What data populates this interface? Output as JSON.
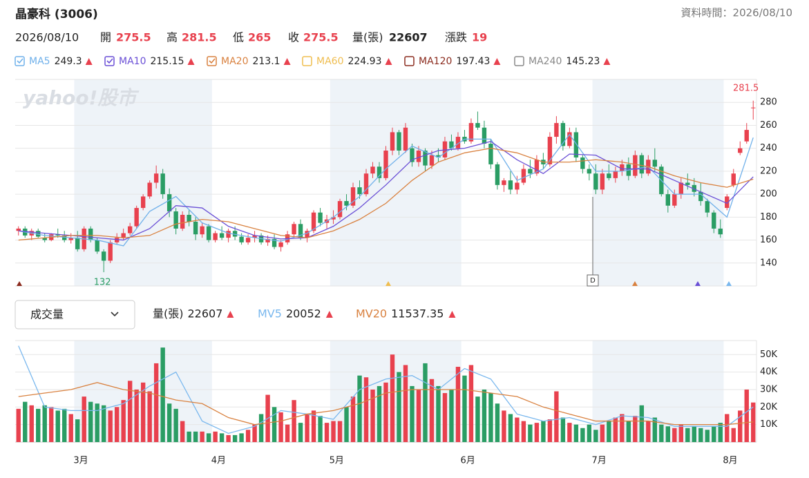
{
  "header": {
    "title": "晶豪科 (3006)",
    "data_time": "資料時間：2026/08/10",
    "date": "2026/08/10",
    "quote_labels": [
      "開",
      "高",
      "低",
      "收",
      "量(張)",
      "漲跌"
    ],
    "change": 19
  },
  "chart_data": {
    "type": "candlestick",
    "watermark": "yahoo!股市",
    "dividend_marker": "D",
    "up_color": "#e8414e",
    "down_color": "#2a9d64",
    "ylim": [
      120,
      300
    ],
    "yticks": [
      140,
      160,
      180,
      200,
      220,
      240,
      260,
      280
    ],
    "xticks": [
      {
        "value": 9,
        "label": "3月"
      },
      {
        "value": 30,
        "label": "4月"
      },
      {
        "value": 48,
        "label": "5月"
      },
      {
        "value": 68,
        "label": "6月"
      },
      {
        "value": 88,
        "label": "7月"
      },
      {
        "value": 108,
        "label": "8月"
      }
    ],
    "ohlc": [
      [
        168,
        172,
        164,
        170
      ],
      [
        170,
        172,
        162,
        164
      ],
      [
        164,
        170,
        160,
        168
      ],
      [
        168,
        170,
        162,
        163
      ],
      [
        162,
        166,
        158,
        160
      ],
      [
        160,
        166,
        159,
        165
      ],
      [
        165,
        170,
        162,
        164
      ],
      [
        164,
        168,
        158,
        160
      ],
      [
        160,
        166,
        157,
        162
      ],
      [
        162,
        168,
        150,
        152
      ],
      [
        152,
        172,
        150,
        170
      ],
      [
        170,
        172,
        158,
        160
      ],
      [
        160,
        162,
        148,
        150
      ],
      [
        150,
        152,
        132,
        142
      ],
      [
        142,
        160,
        140,
        158
      ],
      [
        158,
        166,
        156,
        162
      ],
      [
        162,
        170,
        160,
        166
      ],
      [
        166,
        175,
        164,
        172
      ],
      [
        172,
        190,
        170,
        188
      ],
      [
        188,
        200,
        186,
        198
      ],
      [
        198,
        212,
        196,
        210
      ],
      [
        210,
        225,
        205,
        218
      ],
      [
        218,
        222,
        196,
        200
      ],
      [
        200,
        205,
        180,
        185
      ],
      [
        185,
        188,
        165,
        170
      ],
      [
        170,
        185,
        168,
        182
      ],
      [
        182,
        186,
        172,
        176
      ],
      [
        176,
        180,
        160,
        165
      ],
      [
        165,
        175,
        162,
        172
      ],
      [
        172,
        174,
        158,
        160
      ],
      [
        160,
        168,
        158,
        166
      ],
      [
        166,
        172,
        160,
        162
      ],
      [
        162,
        170,
        158,
        168
      ],
      [
        168,
        172,
        160,
        163
      ],
      [
        163,
        166,
        156,
        158
      ],
      [
        158,
        165,
        156,
        162
      ],
      [
        162,
        168,
        158,
        164
      ],
      [
        164,
        166,
        156,
        158
      ],
      [
        158,
        164,
        155,
        161
      ],
      [
        161,
        165,
        152,
        154
      ],
      [
        154,
        160,
        150,
        158
      ],
      [
        158,
        168,
        156,
        165
      ],
      [
        165,
        176,
        162,
        174
      ],
      [
        174,
        178,
        160,
        162
      ],
      [
        162,
        170,
        158,
        168
      ],
      [
        168,
        186,
        166,
        184
      ],
      [
        184,
        188,
        172,
        175
      ],
      [
        175,
        182,
        170,
        178
      ],
      [
        178,
        186,
        174,
        180
      ],
      [
        180,
        196,
        178,
        194
      ],
      [
        194,
        200,
        186,
        190
      ],
      [
        190,
        210,
        188,
        206
      ],
      [
        206,
        212,
        196,
        200
      ],
      [
        200,
        222,
        198,
        218
      ],
      [
        218,
        228,
        214,
        224
      ],
      [
        224,
        228,
        210,
        214
      ],
      [
        214,
        242,
        212,
        238
      ],
      [
        238,
        258,
        234,
        254
      ],
      [
        254,
        256,
        234,
        238
      ],
      [
        238,
        262,
        236,
        258
      ],
      [
        240,
        244,
        224,
        228
      ],
      [
        228,
        242,
        224,
        238
      ],
      [
        238,
        240,
        220,
        225
      ],
      [
        225,
        238,
        222,
        234
      ],
      [
        234,
        240,
        228,
        232
      ],
      [
        232,
        250,
        230,
        246
      ],
      [
        246,
        252,
        238,
        240
      ],
      [
        240,
        254,
        238,
        250
      ],
      [
        250,
        256,
        244,
        246
      ],
      [
        246,
        266,
        244,
        262
      ],
      [
        262,
        272,
        256,
        258
      ],
      [
        258,
        264,
        240,
        244
      ],
      [
        244,
        248,
        222,
        226
      ],
      [
        226,
        228,
        204,
        208
      ],
      [
        208,
        214,
        202,
        212
      ],
      [
        212,
        220,
        200,
        204
      ],
      [
        204,
        216,
        200,
        210
      ],
      [
        210,
        226,
        208,
        222
      ],
      [
        222,
        230,
        214,
        218
      ],
      [
        218,
        234,
        216,
        230
      ],
      [
        230,
        236,
        222,
        226
      ],
      [
        226,
        254,
        224,
        250
      ],
      [
        250,
        268,
        244,
        262
      ],
      [
        262,
        264,
        238,
        242
      ],
      [
        242,
        258,
        240,
        254
      ],
      [
        254,
        258,
        228,
        232
      ],
      [
        232,
        234,
        218,
        222
      ],
      [
        222,
        226,
        212,
        218
      ],
      [
        218,
        226,
        200,
        204
      ],
      [
        204,
        222,
        200,
        218
      ],
      [
        218,
        226,
        212,
        214
      ],
      [
        214,
        224,
        210,
        220
      ],
      [
        220,
        230,
        216,
        226
      ],
      [
        226,
        232,
        212,
        216
      ],
      [
        216,
        238,
        214,
        234
      ],
      [
        234,
        236,
        214,
        218
      ],
      [
        218,
        234,
        216,
        230
      ],
      [
        230,
        240,
        220,
        224
      ],
      [
        224,
        226,
        198,
        200
      ],
      [
        200,
        204,
        184,
        190
      ],
      [
        190,
        204,
        188,
        200
      ],
      [
        200,
        214,
        196,
        210
      ],
      [
        210,
        218,
        204,
        208
      ],
      [
        208,
        214,
        198,
        202
      ],
      [
        202,
        210,
        190,
        194
      ],
      [
        194,
        196,
        180,
        184
      ],
      [
        184,
        186,
        166,
        170
      ],
      [
        170,
        178,
        162,
        165
      ],
      [
        188,
        200,
        186,
        198
      ],
      [
        208,
        222,
        206,
        218
      ],
      [
        236,
        246,
        234,
        240
      ],
      [
        246,
        262,
        244,
        256
      ],
      [
        275.5,
        281.5,
        265,
        275.5
      ]
    ],
    "line_x": [
      0,
      4,
      8,
      12,
      16,
      20,
      24,
      28,
      32,
      36,
      40,
      44,
      48,
      52,
      56,
      60,
      64,
      68,
      72,
      76,
      80,
      84,
      88,
      92,
      96,
      100,
      104,
      108,
      112
    ],
    "ma": [
      {
        "name": "MA5",
        "color": "#6fb0ea",
        "value": 249.3,
        "checked": true,
        "values": [
          168,
          164,
          162,
          160,
          155,
          185,
          198,
          175,
          166,
          162,
          159,
          166,
          180,
          198,
          222,
          242,
          232,
          248,
          248,
          212,
          222,
          252,
          220,
          220,
          224,
          200,
          200,
          180,
          249.3
        ]
      },
      {
        "name": "MA10",
        "color": "#6a4fd6",
        "value": 215.15,
        "checked": true,
        "values": [
          168,
          166,
          164,
          162,
          160,
          170,
          190,
          188,
          172,
          164,
          161,
          162,
          172,
          188,
          208,
          230,
          238,
          240,
          246,
          230,
          218,
          235,
          234,
          222,
          222,
          212,
          202,
          192,
          215.15
        ]
      },
      {
        "name": "MA20",
        "color": "#d9813f",
        "value": 213.1,
        "checked": true,
        "values": [
          160,
          162,
          164,
          164,
          162,
          164,
          174,
          178,
          176,
          170,
          164,
          162,
          168,
          178,
          192,
          212,
          228,
          236,
          240,
          236,
          228,
          228,
          230,
          228,
          224,
          216,
          210,
          206,
          213.1
        ]
      },
      {
        "name": "MA60",
        "color": "#efbd4f",
        "value": 224.93,
        "checked": false
      },
      {
        "name": "MA120",
        "color": "#8b2b1e",
        "value": 197.43,
        "checked": false
      },
      {
        "name": "MA240",
        "color": "#888888",
        "value": 145.23,
        "checked": false
      }
    ],
    "volume_selector": "成交量",
    "vlim": [
      0,
      58000
    ],
    "vticks": [
      {
        "value": 10000,
        "label": "10K"
      },
      {
        "value": 20000,
        "label": "20K"
      },
      {
        "value": 30000,
        "label": "30K"
      },
      {
        "value": 40000,
        "label": "40K"
      },
      {
        "value": 50000,
        "label": "50K"
      }
    ],
    "volume": [
      19000,
      23000,
      21000,
      19000,
      21000,
      20000,
      18000,
      19000,
      16000,
      13000,
      26000,
      23000,
      22000,
      21000,
      18000,
      20000,
      24000,
      35000,
      30000,
      34000,
      29000,
      45000,
      54000,
      22000,
      19000,
      12000,
      6000,
      6000,
      6000,
      5000,
      6000,
      5000,
      4000,
      4000,
      5000,
      7000,
      10000,
      16000,
      27000,
      20000,
      17000,
      10000,
      24000,
      11000,
      16000,
      18000,
      15000,
      11000,
      12000,
      12000,
      20000,
      26000,
      38000,
      37000,
      30000,
      32000,
      34000,
      50000,
      40000,
      44000,
      32000,
      30000,
      45000,
      36000,
      32000,
      28000,
      30000,
      43000,
      38000,
      44000,
      26000,
      30000,
      28000,
      22000,
      18000,
      16000,
      14000,
      12000,
      10000,
      11000,
      12000,
      13000,
      29000,
      14000,
      11000,
      10000,
      8000,
      10000,
      7000,
      10000,
      12000,
      14000,
      16000,
      12000,
      15000,
      21000,
      12000,
      14000,
      10000,
      9000,
      8000,
      10000,
      8000,
      9000,
      8000,
      7000,
      9000,
      11000,
      16000,
      8000,
      18000,
      30000,
      22607
    ],
    "mv": [
      {
        "name": "MV5",
        "color": "#7ab8ee",
        "value": 20052,
        "values": [
          55000,
          20000,
          18000,
          18000,
          22000,
          32000,
          40000,
          12000,
          5000,
          9000,
          18000,
          16000,
          13000,
          30000,
          36000,
          38000,
          30000,
          42000,
          36000,
          16000,
          12000,
          14000,
          10000,
          15000,
          14000,
          9000,
          9000,
          9000,
          20052
        ]
      },
      {
        "name": "MV20",
        "color": "#d9813f",
        "value": 11537.35,
        "values": [
          26000,
          28000,
          30000,
          34000,
          30000,
          28000,
          24000,
          22000,
          14000,
          10000,
          12000,
          16000,
          18000,
          22000,
          28000,
          30000,
          30000,
          30000,
          28000,
          26000,
          20000,
          16000,
          12000,
          12000,
          12000,
          10000,
          10000,
          10000,
          11537.35
        ]
      }
    ]
  }
}
